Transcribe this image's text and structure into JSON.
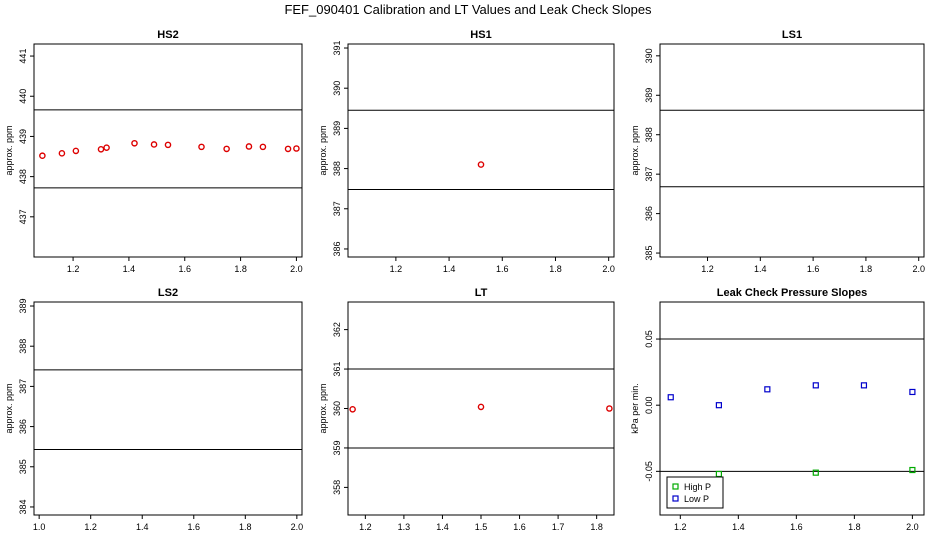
{
  "page_title": "FEF_090401  Calibration and LT Values and Leak Check Slopes",
  "colors": {
    "red": "#dd0000",
    "blue": "#0000cc",
    "green": "#00aa00",
    "axis": "#000000"
  },
  "chart_data": [
    {
      "type": "scatter",
      "title": "HS2",
      "ylabel": "approx. ppm",
      "xlim": [
        1.06,
        2.02
      ],
      "ylim": [
        436.0,
        441.3
      ],
      "xticks": [
        1.2,
        1.4,
        1.6,
        1.8,
        2.0
      ],
      "xtick_labels": [
        "1.2",
        "1.4",
        "1.6",
        "1.8",
        "2.0"
      ],
      "yticks": [
        437,
        438,
        439,
        440,
        441
      ],
      "ytick_labels": [
        "437",
        "438",
        "439",
        "440",
        "441"
      ],
      "hlines": [
        439.66,
        437.72
      ],
      "series": [
        {
          "color": "red",
          "marker": "circle",
          "x": [
            1.09,
            1.16,
            1.21,
            1.3,
            1.32,
            1.42,
            1.49,
            1.54,
            1.66,
            1.75,
            1.83,
            1.88,
            1.97,
            2.0
          ],
          "y": [
            438.52,
            438.58,
            438.64,
            438.68,
            438.72,
            438.83,
            438.8,
            438.79,
            438.74,
            438.69,
            438.75,
            438.74,
            438.69,
            438.7
          ]
        }
      ]
    },
    {
      "type": "scatter",
      "title": "HS1",
      "ylabel": "approx. ppm",
      "xlim": [
        1.02,
        2.02
      ],
      "ylim": [
        385.8,
        391.1
      ],
      "xticks": [
        1.2,
        1.4,
        1.6,
        1.8,
        2.0
      ],
      "xtick_labels": [
        "1.2",
        "1.4",
        "1.6",
        "1.8",
        "2.0"
      ],
      "yticks": [
        386,
        387,
        388,
        389,
        390,
        391
      ],
      "ytick_labels": [
        "386",
        "387",
        "388",
        "389",
        "390",
        "391"
      ],
      "hlines": [
        389.45,
        387.48
      ],
      "series": [
        {
          "color": "red",
          "marker": "circle",
          "x": [
            1.52
          ],
          "y": [
            388.1
          ]
        }
      ]
    },
    {
      "type": "scatter",
      "title": "LS1",
      "ylabel": "approx. ppm",
      "xlim": [
        1.02,
        2.02
      ],
      "ylim": [
        384.9,
        390.3
      ],
      "xticks": [
        1.2,
        1.4,
        1.6,
        1.8,
        2.0
      ],
      "xtick_labels": [
        "1.2",
        "1.4",
        "1.6",
        "1.8",
        "2.0"
      ],
      "yticks": [
        385,
        386,
        387,
        388,
        389,
        390
      ],
      "ytick_labels": [
        "385",
        "386",
        "387",
        "388",
        "389",
        "390"
      ],
      "hlines": [
        388.62,
        386.68
      ],
      "series": []
    },
    {
      "type": "scatter",
      "title": "LS2",
      "ylabel": "approx. ppm",
      "xlim": [
        0.98,
        2.02
      ],
      "ylim": [
        383.8,
        389.1
      ],
      "xticks": [
        1.0,
        1.2,
        1.4,
        1.6,
        1.8,
        2.0
      ],
      "xtick_labels": [
        "1.0",
        "1.2",
        "1.4",
        "1.6",
        "1.8",
        "2.0"
      ],
      "yticks": [
        384,
        385,
        386,
        387,
        388,
        389
      ],
      "ytick_labels": [
        "384",
        "385",
        "386",
        "387",
        "388",
        "389"
      ],
      "hlines": [
        387.41,
        385.43
      ],
      "series": []
    },
    {
      "type": "scatter",
      "title": "LT",
      "ylabel": "approx. ppm",
      "xlim": [
        1.155,
        1.845
      ],
      "ylim": [
        357.3,
        362.7
      ],
      "xticks": [
        1.2,
        1.3,
        1.4,
        1.5,
        1.6,
        1.7,
        1.8
      ],
      "xtick_labels": [
        "1.2",
        "1.3",
        "1.4",
        "1.5",
        "1.6",
        "1.7",
        "1.8"
      ],
      "yticks": [
        358,
        359,
        360,
        361,
        362
      ],
      "ytick_labels": [
        "358",
        "359",
        "360",
        "361",
        "362"
      ],
      "hlines": [
        361.0,
        359.0
      ],
      "series": [
        {
          "color": "red",
          "marker": "circle",
          "x": [
            1.167,
            1.5,
            1.833
          ],
          "y": [
            359.98,
            360.04,
            360.0
          ]
        }
      ]
    },
    {
      "type": "scatter",
      "title": "Leak Check Pressure Slopes",
      "ylabel": "kPa per min.",
      "xlim": [
        1.13,
        2.04
      ],
      "ylim": [
        -0.083,
        0.078
      ],
      "xticks": [
        1.2,
        1.4,
        1.6,
        1.8,
        2.0
      ],
      "xtick_labels": [
        "1.2",
        "1.4",
        "1.6",
        "1.8",
        "2.0"
      ],
      "yticks": [
        0.05,
        0.0,
        -0.05
      ],
      "ytick_labels": [
        "0.05",
        "0.00",
        "-0.05"
      ],
      "hlines": [
        0.05,
        -0.05
      ],
      "legend": {
        "position": "bottom-left",
        "entries": [
          {
            "label": "High P",
            "color": "green"
          },
          {
            "label": "Low P",
            "color": "blue"
          }
        ]
      },
      "series": [
        {
          "name": "High P",
          "color": "green",
          "marker": "square",
          "x": [
            1.333,
            1.667,
            2.0
          ],
          "y": [
            -0.052,
            -0.051,
            -0.049
          ]
        },
        {
          "name": "Low P",
          "color": "blue",
          "marker": "square",
          "x": [
            1.167,
            1.333,
            1.5,
            1.667,
            1.833,
            2.0
          ],
          "y": [
            0.006,
            0.0,
            0.012,
            0.015,
            0.015,
            0.01
          ]
        }
      ]
    }
  ]
}
